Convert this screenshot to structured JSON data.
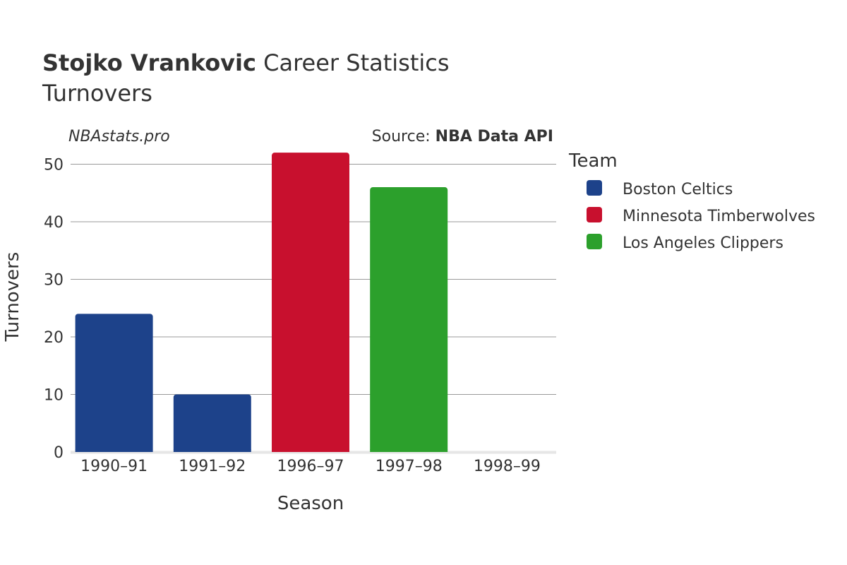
{
  "header": {
    "title_bold": "Stojko Vrankovic",
    "title_rest": "Career Statistics",
    "subtitle": "Turnovers"
  },
  "watermark": "NBAstats.pro",
  "source": {
    "prefix": "Source: ",
    "name": "NBA Data API"
  },
  "legend": {
    "title": "Team",
    "items": [
      {
        "label": "Boston Celtics",
        "color": "#1d428a"
      },
      {
        "label": "Minnesota Timberwolves",
        "color": "#c8102e"
      },
      {
        "label": "Los Angeles Clippers",
        "color": "#2ca02c"
      }
    ]
  },
  "chart_data": {
    "type": "bar",
    "title": "Stojko Vrankovic Career Statistics",
    "subtitle": "Turnovers",
    "xlabel": "Season",
    "ylabel": "Turnovers",
    "categories": [
      "1990–91",
      "1991–92",
      "1996–97",
      "1997–98",
      "1998–99"
    ],
    "values": [
      24,
      10,
      52,
      46,
      0
    ],
    "bar_teams": [
      "Boston Celtics",
      "Boston Celtics",
      "Minnesota Timberwolves",
      "Los Angeles Clippers",
      "Los Angeles Clippers"
    ],
    "ylim": [
      0,
      53
    ],
    "yticks": [
      0,
      10,
      20,
      30,
      40,
      50
    ],
    "grid": true,
    "legend_position": "right"
  }
}
